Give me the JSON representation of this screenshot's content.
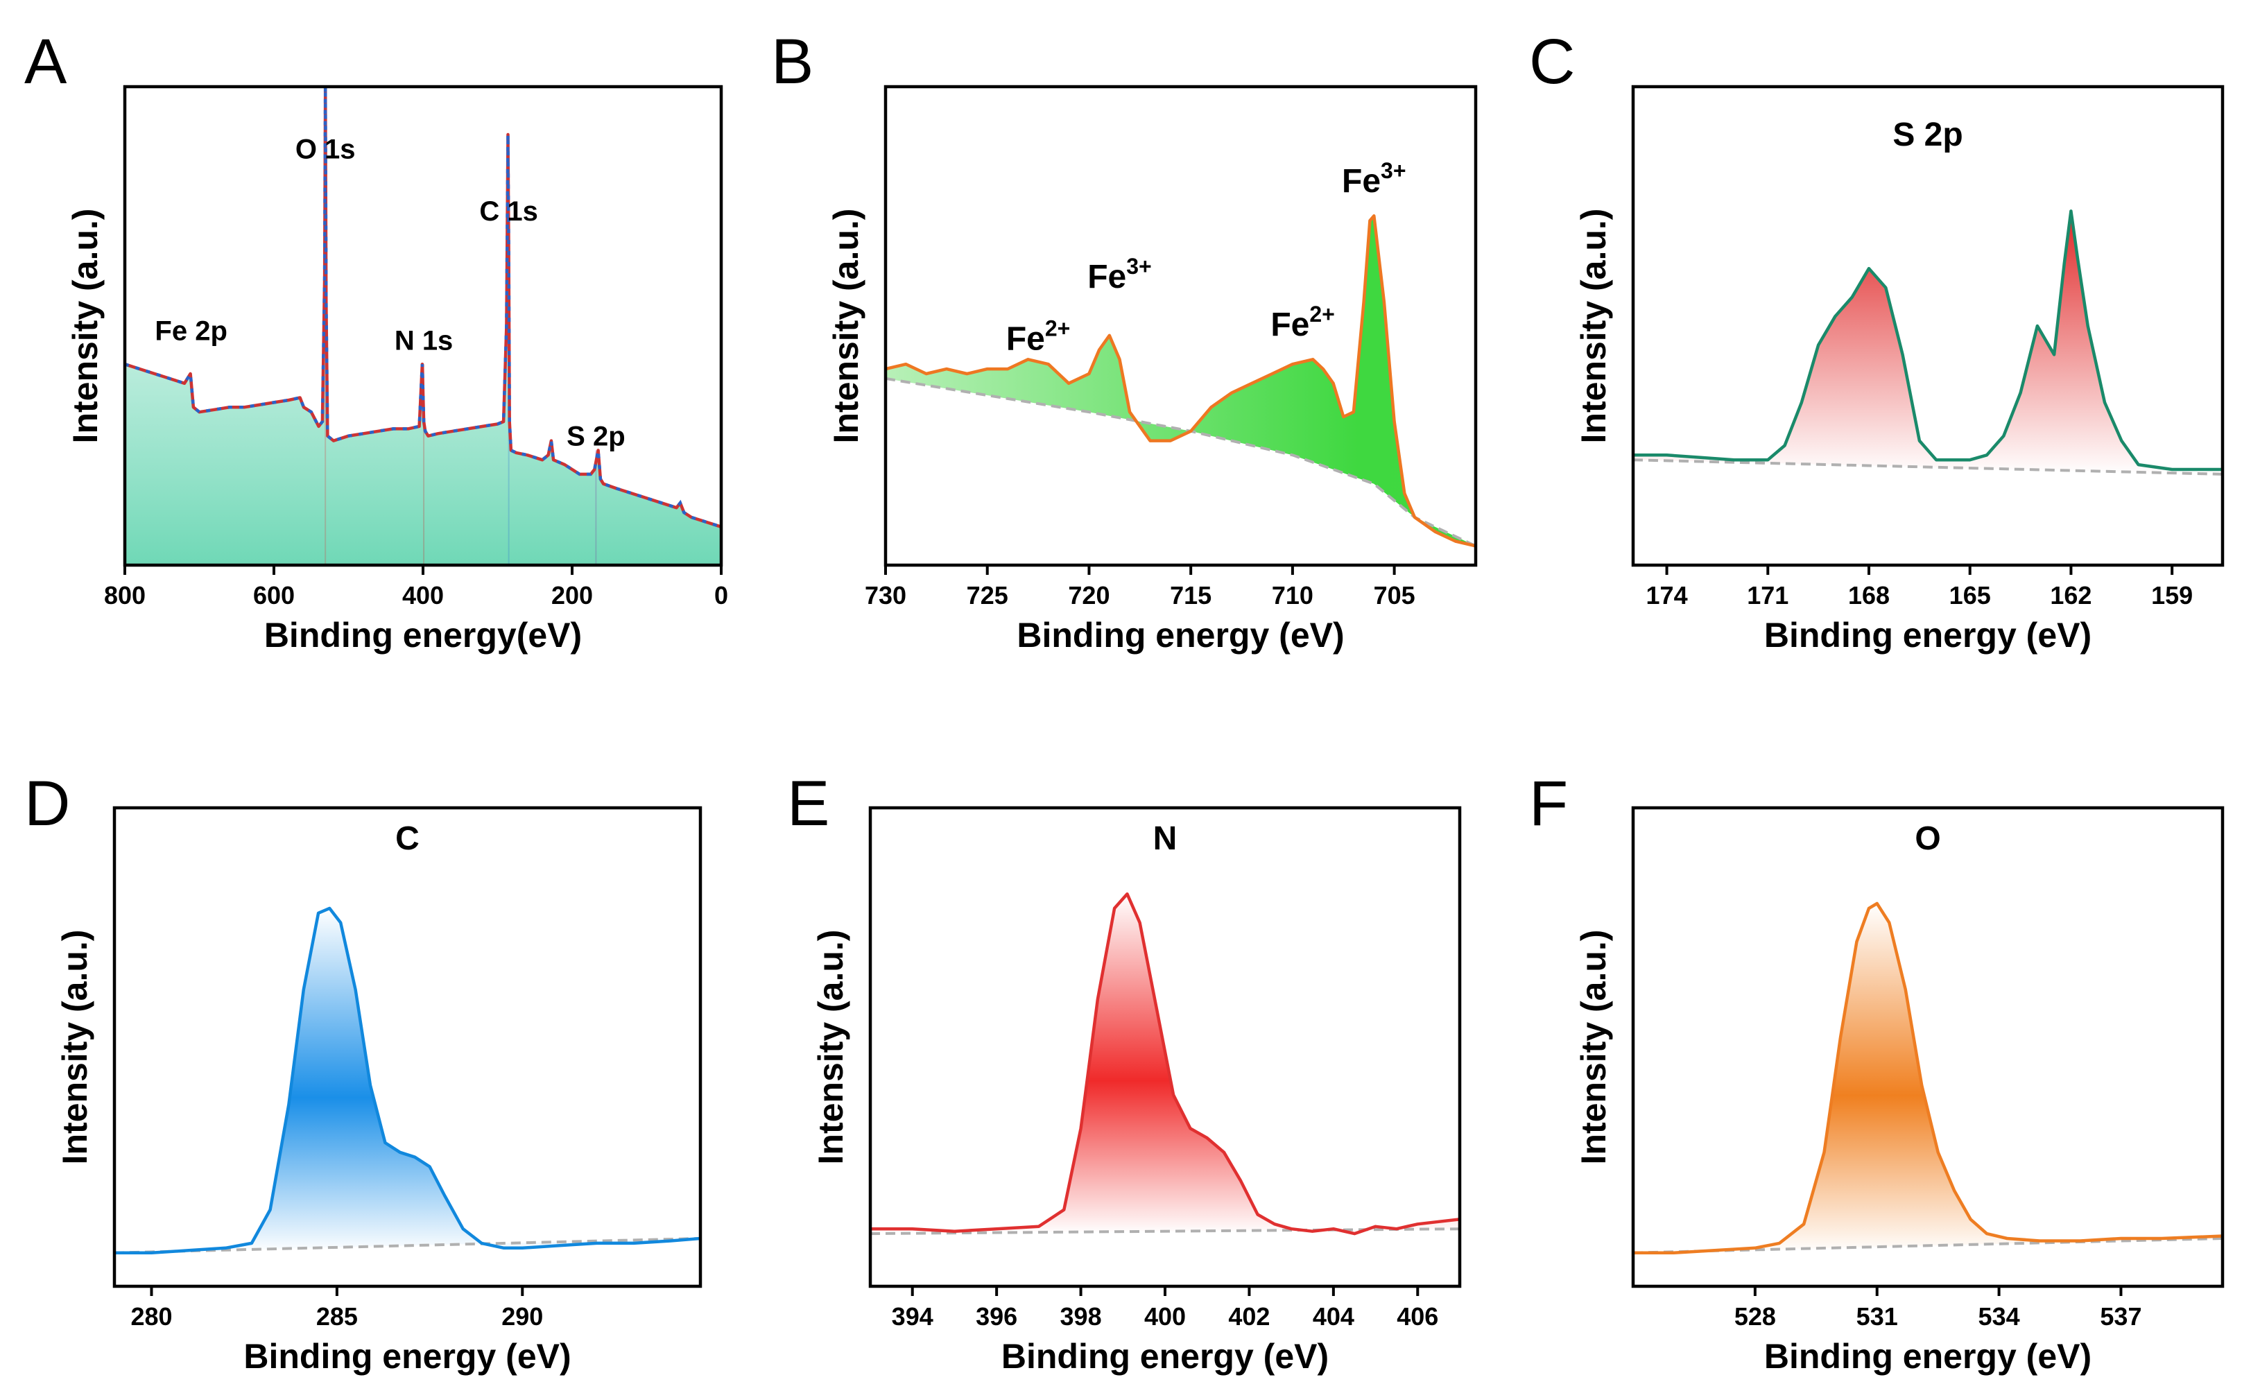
{
  "figure": {
    "panels": [
      "A",
      "B",
      "C",
      "D",
      "E",
      "F"
    ]
  },
  "chart_data": [
    {
      "panel": "A",
      "type": "line",
      "xlabel": "Binding energy(eV)",
      "ylabel": "Intensity (a.u.)",
      "xlim": [
        800,
        0
      ],
      "ylim": [
        0,
        100
      ],
      "reversed_x": true,
      "xticks": [
        800,
        600,
        400,
        200,
        0
      ],
      "annotations": [
        {
          "label": "O 1s",
          "x": 531,
          "y": 85
        },
        {
          "label": "C 1s",
          "x": 285,
          "y": 72
        },
        {
          "label": "N 1s",
          "x": 399,
          "y": 45
        },
        {
          "label": "Fe 2p",
          "x": 711,
          "y": 47
        },
        {
          "label": "S 2p",
          "x": 168,
          "y": 25
        }
      ],
      "series": [
        {
          "name": "survey",
          "color": "#cc3333",
          "fill": "#7fdcc0",
          "x": [
            800,
            780,
            760,
            740,
            720,
            712,
            708,
            700,
            680,
            660,
            640,
            620,
            600,
            580,
            565,
            560,
            550,
            540,
            535,
            532,
            531,
            530,
            528,
            520,
            500,
            480,
            460,
            440,
            420,
            405,
            401,
            399,
            397,
            393,
            380,
            360,
            340,
            320,
            300,
            292,
            288,
            286,
            285,
            284,
            282,
            275,
            260,
            240,
            232,
            228,
            225,
            210,
            190,
            175,
            170,
            165,
            162,
            158,
            140,
            120,
            100,
            80,
            60,
            55,
            50,
            40,
            20,
            0
          ],
          "y": [
            42,
            41,
            40,
            39,
            38,
            40,
            33,
            32,
            32.5,
            33,
            33,
            33.5,
            34,
            34.5,
            35,
            33,
            32,
            29,
            30,
            60,
            100,
            55,
            27,
            26,
            27,
            27.5,
            28,
            28.5,
            28.5,
            29,
            42,
            30,
            28,
            27,
            27.5,
            28,
            28.5,
            29,
            29.5,
            30,
            50,
            90,
            66,
            30,
            24,
            23.5,
            23,
            22,
            23,
            26,
            22,
            21,
            19,
            19,
            20,
            24,
            18,
            17,
            16,
            15,
            14,
            13,
            12,
            13,
            11,
            10,
            9,
            8
          ]
        }
      ]
    },
    {
      "panel": "B",
      "type": "area",
      "xlabel": "Binding energy (eV)",
      "ylabel": "Intensity (a.u.)",
      "xlim": [
        730,
        701
      ],
      "ylim": [
        0,
        100
      ],
      "reversed_x": true,
      "xticks": [
        730,
        725,
        720,
        715,
        710,
        705
      ],
      "annotations": [
        {
          "label": "Fe",
          "sup": "2+",
          "x": 722.5,
          "y": 45
        },
        {
          "label": "Fe",
          "sup": "3+",
          "x": 718.5,
          "y": 58
        },
        {
          "label": "Fe",
          "sup": "2+",
          "x": 709.5,
          "y": 48
        },
        {
          "label": "Fe",
          "sup": "3+",
          "x": 706,
          "y": 78
        }
      ],
      "series": [
        {
          "name": "spectrum",
          "color": "#ee7722",
          "x": [
            730,
            729,
            728,
            727,
            726,
            725,
            724,
            723,
            722,
            721,
            720,
            719.5,
            719,
            718.5,
            718,
            717,
            716,
            715,
            714,
            713,
            712,
            711,
            710,
            709,
            708.5,
            708,
            707.5,
            707,
            706.5,
            706.2,
            706,
            705.5,
            705,
            704.5,
            704,
            703,
            702,
            701
          ],
          "y": [
            41,
            42,
            40,
            41,
            40,
            41,
            41,
            43,
            42,
            38,
            40,
            45,
            48,
            43,
            32,
            26,
            26,
            28,
            33,
            36,
            38,
            40,
            42,
            43,
            41,
            38,
            31,
            32,
            55,
            72,
            73,
            55,
            30,
            15,
            10,
            7,
            5,
            4
          ]
        },
        {
          "name": "baseline",
          "color": "#b0b0b0",
          "x": [
            730,
            720,
            715,
            710,
            706,
            704,
            701
          ],
          "y": [
            39,
            32,
            28,
            23,
            17,
            10,
            4
          ]
        }
      ]
    },
    {
      "panel": "C",
      "type": "area",
      "title": "S 2p",
      "xlabel": "Binding energy (eV)",
      "ylabel": "Intensity (a.u.)",
      "xlim": [
        175,
        157.5
      ],
      "ylim": [
        0,
        100
      ],
      "reversed_x": true,
      "xticks": [
        174,
        171,
        168,
        165,
        162,
        159
      ],
      "series": [
        {
          "name": "spectrum",
          "color": "#1a8a6a",
          "x": [
            175,
            174,
            173,
            172,
            171,
            170.5,
            170,
            169.5,
            169,
            168.5,
            168,
            167.5,
            167,
            166.5,
            166,
            165.5,
            165,
            164.5,
            164,
            163.5,
            163,
            162.5,
            162.2,
            162,
            161.8,
            161.5,
            161,
            160.5,
            160,
            159,
            158,
            157.5
          ],
          "y": [
            23,
            23,
            22.5,
            22,
            22,
            25,
            34,
            46,
            52,
            56,
            62,
            58,
            44,
            26,
            22,
            22,
            22,
            23,
            27,
            36,
            50,
            44,
            63,
            74,
            64,
            50,
            34,
            26,
            21,
            20,
            20,
            20
          ]
        },
        {
          "name": "baseline",
          "color": "#b0b0b0",
          "x": [
            175,
            157.5
          ],
          "y": [
            22,
            19
          ]
        }
      ]
    },
    {
      "panel": "D",
      "type": "area",
      "title": "C",
      "xlabel": "Binding energy (eV)",
      "ylabel": "Intensity (a.u.)",
      "xlim": [
        279,
        294.8
      ],
      "ylim": [
        0,
        100
      ],
      "xticks": [
        280,
        285,
        290
      ],
      "series": [
        {
          "name": "spectrum",
          "color": "#1188dd",
          "x": [
            279,
            280,
            281,
            282,
            282.7,
            283.2,
            283.7,
            284.1,
            284.5,
            284.8,
            285.1,
            285.5,
            285.9,
            286.3,
            286.7,
            287.1,
            287.5,
            287.9,
            288.4,
            288.9,
            289.5,
            290,
            291,
            292,
            293,
            294,
            294.8
          ],
          "y": [
            7,
            7,
            7.5,
            8,
            9,
            16,
            38,
            62,
            78,
            79,
            76,
            62,
            42,
            30,
            28,
            27,
            25,
            19,
            12,
            9,
            8,
            8,
            8.5,
            9,
            9,
            9.5,
            10
          ]
        },
        {
          "name": "baseline",
          "color": "#b0b0b0",
          "x": [
            279,
            294.8
          ],
          "y": [
            7,
            10
          ]
        }
      ]
    },
    {
      "panel": "E",
      "type": "area",
      "title": "N",
      "xlabel": "Binding energy (eV)",
      "ylabel": "Intensity (a.u.)",
      "xlim": [
        393,
        407
      ],
      "ylim": [
        0,
        100
      ],
      "xticks": [
        394,
        396,
        398,
        400,
        402,
        404,
        406
      ],
      "series": [
        {
          "name": "spectrum",
          "color": "#e03030",
          "x": [
            393,
            394,
            395,
            396,
            397,
            397.6,
            398,
            398.4,
            398.8,
            399.1,
            399.4,
            399.8,
            400.2,
            400.6,
            401,
            401.4,
            401.8,
            402.2,
            402.6,
            403,
            403.5,
            404,
            404.5,
            405,
            405.5,
            406,
            406.5,
            407
          ],
          "y": [
            12,
            12,
            11.5,
            12,
            12.5,
            16,
            33,
            60,
            79,
            82,
            76,
            58,
            40,
            33,
            31,
            28,
            22,
            15,
            13,
            12,
            11.5,
            12,
            11,
            12.5,
            12,
            13,
            13.5,
            14
          ]
        },
        {
          "name": "baseline",
          "color": "#b0b0b0",
          "x": [
            393,
            407
          ],
          "y": [
            11,
            12
          ]
        }
      ]
    },
    {
      "panel": "F",
      "type": "area",
      "title": "O",
      "xlabel": "Binding energy (eV)",
      "ylabel": "Intensity (a.u.)",
      "xlim": [
        525,
        539.5
      ],
      "ylim": [
        0,
        100
      ],
      "xticks": [
        528,
        531,
        534,
        537
      ],
      "series": [
        {
          "name": "spectrum",
          "color": "#ee7d22",
          "x": [
            525,
            526,
            527,
            528,
            528.6,
            529.2,
            529.7,
            530.1,
            530.5,
            530.8,
            531,
            531.3,
            531.7,
            532.1,
            532.5,
            532.9,
            533.3,
            533.7,
            534.2,
            535,
            536,
            537,
            538,
            539.5
          ],
          "y": [
            7,
            7,
            7.5,
            8,
            9,
            13,
            28,
            52,
            72,
            79,
            80,
            76,
            62,
            42,
            28,
            20,
            14,
            11,
            10,
            9.5,
            9.5,
            10,
            10,
            10.5
          ]
        },
        {
          "name": "baseline",
          "color": "#b0b0b0",
          "x": [
            525,
            539.5
          ],
          "y": [
            7,
            10
          ]
        }
      ]
    }
  ]
}
